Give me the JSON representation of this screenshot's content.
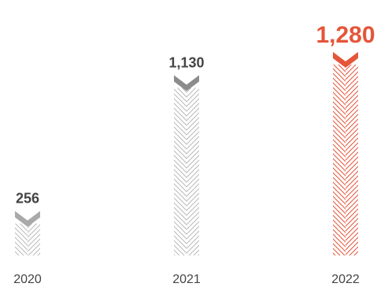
{
  "chart_data": {
    "type": "bar",
    "categories": [
      "2020",
      "2021",
      "2022"
    ],
    "values": [
      256,
      1130,
      1280
    ],
    "value_labels": [
      "256",
      "1,130",
      "1,280"
    ],
    "highlight_index": 2,
    "colors": {
      "default_stripe": "#b9b9b9",
      "default_marker": "#a9a9a9",
      "middle_marker": "#8c8c8c",
      "highlight": "#e5553a",
      "default_label": "#444444",
      "axis_label": "#444444"
    },
    "title": "",
    "xlabel": "",
    "ylabel": "",
    "grid": false,
    "legend": "none"
  }
}
